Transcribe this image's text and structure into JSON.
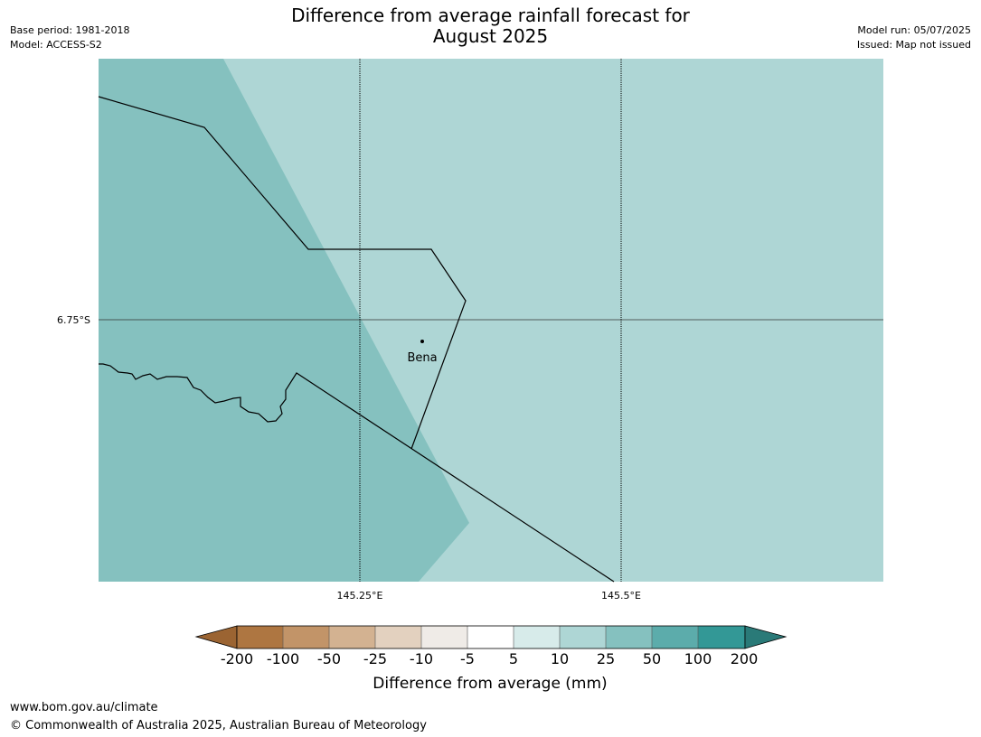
{
  "header": {
    "title_line1": "Difference from average rainfall forecast for",
    "title_line2": "August 2025",
    "base_period": "Base period: 1981-2018",
    "model": "Model: ACCESS-S2",
    "model_run": "Model run: 05/07/2025",
    "issued": "Issued: Map not issued"
  },
  "map": {
    "lat_label": "6.75°S",
    "lon_labels": [
      "145.25°E",
      "145.5°E"
    ],
    "place": "Bena",
    "colors": {
      "region_50_100": "#85c1bf",
      "region_10_25": "#aed6d5",
      "borders": "#000000",
      "gridline": "#333333"
    }
  },
  "legend": {
    "title": "Difference from average (mm)",
    "tick_labels": [
      "-200",
      "-100",
      "-50",
      "-25",
      "-10",
      "-5",
      "5",
      "10",
      "25",
      "50",
      "100",
      "200"
    ],
    "colors": [
      "#9b6432",
      "#ae7641",
      "#c29468",
      "#d3b291",
      "#e3d1bf",
      "#efebe7",
      "#ffffff",
      "#d7ebea",
      "#aed6d5",
      "#85c1bf",
      "#5cacab",
      "#339896",
      "#2a7a78"
    ]
  },
  "footer": {
    "url": "www.bom.gov.au/climate",
    "copyright": "© Commonwealth of Australia 2025, Australian Bureau of Meteorology"
  }
}
